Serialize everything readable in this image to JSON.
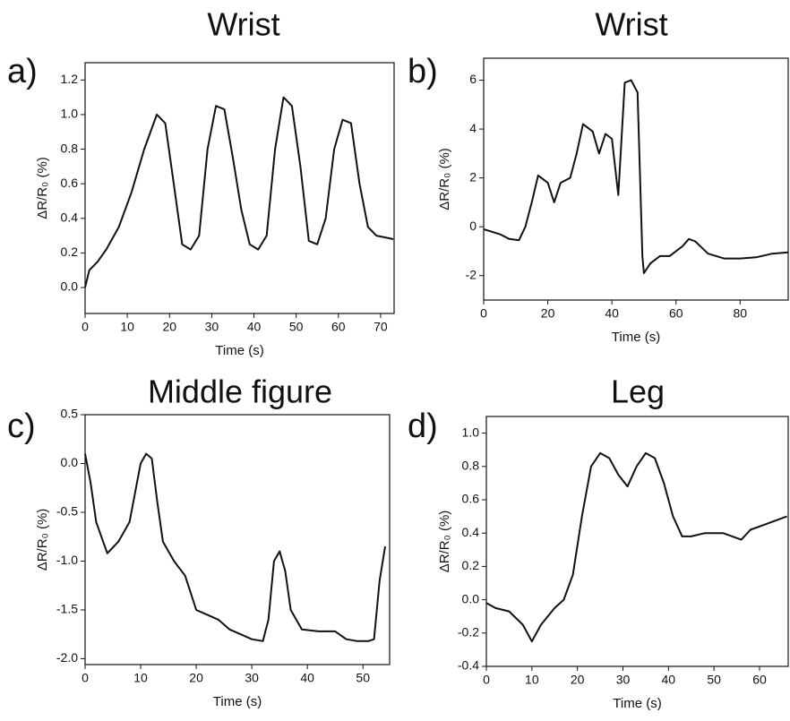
{
  "chart_data": [
    {
      "type": "line",
      "panel_label": "a)",
      "title": "Wrist",
      "x_label": "Time (s)",
      "y_label": "ΔR/R₀ (%)",
      "color": "#111111",
      "x": [
        0,
        1,
        3,
        5,
        8,
        11,
        14,
        17,
        19,
        21,
        23,
        25,
        27,
        29,
        31,
        33,
        35,
        37,
        39,
        41,
        43,
        45,
        47,
        49,
        51,
        53,
        55,
        57,
        59,
        61,
        63,
        65,
        67,
        69,
        71,
        73
      ],
      "values": [
        0,
        0.1,
        0.15,
        0.22,
        0.35,
        0.55,
        0.8,
        1.0,
        0.95,
        0.6,
        0.25,
        0.22,
        0.3,
        0.8,
        1.05,
        1.03,
        0.75,
        0.45,
        0.25,
        0.22,
        0.3,
        0.8,
        1.1,
        1.05,
        0.7,
        0.27,
        0.25,
        0.4,
        0.8,
        0.97,
        0.95,
        0.6,
        0.35,
        0.3,
        0.29,
        0.28
      ],
      "xlim": [
        0,
        73.2
      ],
      "ylim": [
        -0.15,
        1.3
      ],
      "xticks": [
        0,
        10,
        20,
        30,
        40,
        50,
        60,
        70
      ],
      "yticks": [
        {
          "value": 0,
          "label": "0.0"
        },
        0.2,
        0.4,
        0.6,
        0.8,
        {
          "value": 1,
          "label": "1.0"
        },
        1.2
      ]
    },
    {
      "type": "line",
      "panel_label": "b)",
      "title": "Wrist",
      "x_label": "Time (s)",
      "y_label": "ΔR/R₀ (%)",
      "color": "#111111",
      "x": [
        0,
        5,
        8,
        11,
        13,
        15,
        17,
        20,
        22,
        24,
        27,
        29,
        31,
        34,
        36,
        38,
        40,
        42,
        44,
        46,
        48,
        49.5,
        50,
        52,
        55,
        58,
        62,
        64,
        66,
        70,
        75,
        80,
        85,
        90,
        95
      ],
      "values": [
        -0.1,
        -0.3,
        -0.5,
        -0.55,
        0,
        1,
        2.1,
        1.8,
        1.0,
        1.8,
        2,
        3,
        4.2,
        3.9,
        3,
        3.8,
        3.6,
        1.3,
        5.9,
        6,
        5.5,
        -1.2,
        -1.9,
        -1.5,
        -1.2,
        -1.2,
        -0.8,
        -0.5,
        -0.6,
        -1.1,
        -1.3,
        -1.3,
        -1.25,
        -1.1,
        -1.05
      ],
      "xlim": [
        0,
        95
      ],
      "ylim": [
        -3,
        6.9
      ],
      "xticks": [
        0,
        20,
        40,
        60,
        80
      ],
      "yticks": [
        -2,
        0,
        2,
        4,
        6
      ]
    },
    {
      "type": "line",
      "panel_label": "c)",
      "title": "Middle figure",
      "x_label": "Time (s)",
      "y_label": "ΔR/R₀ (%)",
      "color": "#111111",
      "x": [
        0,
        1,
        2,
        4,
        6,
        8,
        9,
        10,
        11,
        12,
        13,
        14,
        16,
        18,
        20,
        22,
        24,
        26,
        28,
        30,
        32,
        33,
        34,
        35,
        36,
        37,
        39,
        42,
        45,
        47,
        49,
        51,
        52,
        53,
        54
      ],
      "values": [
        0.1,
        -0.2,
        -0.6,
        -0.92,
        -0.8,
        -0.6,
        -0.3,
        0,
        0.1,
        0.05,
        -0.4,
        -0.8,
        -1.0,
        -1.15,
        -1.5,
        -1.55,
        -1.6,
        -1.7,
        -1.75,
        -1.8,
        -1.82,
        -1.6,
        -1.0,
        -0.9,
        -1.1,
        -1.5,
        -1.7,
        -1.72,
        -1.72,
        -1.8,
        -1.82,
        -1.82,
        -1.8,
        -1.2,
        -0.85
      ],
      "xlim": [
        0,
        54.8
      ],
      "ylim": [
        -2.06,
        0.5
      ],
      "xticks": [
        0,
        10,
        20,
        30,
        40,
        50
      ],
      "yticks": [
        0.5,
        {
          "value": 0,
          "label": "0.0"
        },
        -0.5,
        {
          "value": -1,
          "label": "-1.0"
        },
        -1.5,
        {
          "value": -2,
          "label": "-2.0"
        }
      ]
    },
    {
      "type": "line",
      "panel_label": "d)",
      "title": "Leg",
      "x_label": "Time (s)",
      "y_label": "ΔR/R₀ (%)",
      "color": "#111111",
      "x": [
        0,
        2,
        5,
        8,
        10,
        12,
        15,
        17,
        19,
        21,
        23,
        25,
        27,
        29,
        31,
        33,
        35,
        37,
        39,
        41,
        43,
        45,
        48,
        52,
        56,
        58,
        61,
        64,
        66
      ],
      "values": [
        -0.02,
        -0.05,
        -0.07,
        -0.15,
        -0.25,
        -0.15,
        -0.05,
        0,
        0.15,
        0.5,
        0.8,
        0.88,
        0.85,
        0.75,
        0.68,
        0.8,
        0.88,
        0.85,
        0.7,
        0.5,
        0.38,
        0.38,
        0.4,
        0.4,
        0.36,
        0.42,
        0.45,
        0.48,
        0.5
      ],
      "xlim": [
        0,
        66.3
      ],
      "ylim": [
        -0.4,
        1.1
      ],
      "xticks": [
        0,
        10,
        20,
        30,
        40,
        50,
        60
      ],
      "yticks": [
        -0.4,
        -0.2,
        {
          "value": 0,
          "label": "0.0"
        },
        0.2,
        0.4,
        0.6,
        0.8,
        {
          "value": 1,
          "label": "1.0"
        }
      ]
    }
  ]
}
